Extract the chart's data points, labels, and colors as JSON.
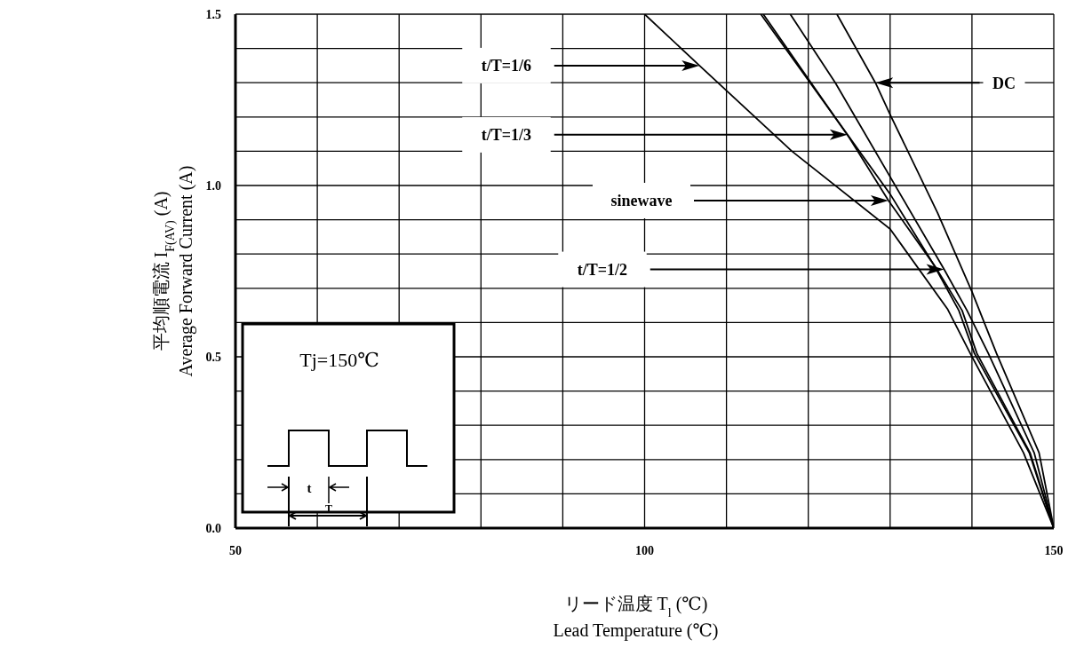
{
  "chart_data": {
    "type": "line",
    "xlabel": "リード温度 T$_{l}$ (℃)\nLead Temperature (℃)",
    "ylabel": "平均順電流 I$_{F(AV)}$ (A)\nAverage Forward Current (A)",
    "xlim": [
      50,
      150
    ],
    "ylim": [
      0,
      1.5
    ],
    "xticks": [
      50,
      {
        "value": 60,
        "label": null
      },
      {
        "value": 70,
        "label": null
      },
      {
        "value": 80,
        "label": null
      },
      {
        "value": 90,
        "label": null
      },
      100,
      {
        "value": 110,
        "label": null
      },
      {
        "value": 120,
        "label": null
      },
      {
        "value": 130,
        "label": null
      },
      {
        "value": 140,
        "label": null
      },
      150
    ],
    "yticks": [
      {
        "value": 0,
        "label": "0.0"
      },
      {
        "value": 0.1,
        "label": null
      },
      {
        "value": 0.2,
        "label": null
      },
      {
        "value": 0.3,
        "label": null
      },
      {
        "value": 0.4,
        "label": null
      },
      0.5,
      {
        "value": 0.6,
        "label": null
      },
      {
        "value": 0.7,
        "label": null
      },
      {
        "value": 0.8,
        "label": null
      },
      {
        "value": 0.9,
        "label": null
      },
      {
        "value": 1,
        "label": "1.0"
      },
      {
        "value": 1.1,
        "label": null
      },
      {
        "value": 1.2,
        "label": null
      },
      {
        "value": 1.3,
        "label": null
      },
      {
        "value": 1.4,
        "label": null
      },
      1.5
    ],
    "grid": true,
    "legend": false,
    "marker": "none",
    "line_style": "solid",
    "series": [
      {
        "color": "#000000",
        "x": [
          100,
          106.7,
          118,
          130,
          137,
          139.9,
          146.3,
          150
        ],
        "values": [
          1.5,
          1.35,
          1.1,
          0.873,
          0.64,
          0.505,
          0.22,
          0
        ]
      },
      {
        "color": "#000000",
        "x": [
          114.2,
          124.8,
          130,
          135.3,
          138.4,
          140.3,
          147,
          150
        ],
        "values": [
          1.5,
          1.148,
          0.975,
          0.77,
          0.635,
          0.51,
          0.22,
          0
        ]
      },
      {
        "color": "#000000",
        "x": [
          114.5,
          125,
          129.8,
          135.6,
          138.8,
          140.6,
          147.1,
          150
        ],
        "values": [
          1.5,
          1.14,
          0.956,
          0.76,
          0.635,
          0.51,
          0.22,
          0
        ]
      },
      {
        "color": "#000000",
        "x": [
          117.8,
          123.3,
          136.6,
          139.4,
          142,
          147.6,
          150
        ],
        "values": [
          1.5,
          1.3,
          0.755,
          0.635,
          0.51,
          0.22,
          0
        ]
      },
      {
        "color": "#000000",
        "x": [
          123.5,
          128.2,
          130,
          135.8,
          140,
          143,
          148.2,
          150
        ],
        "values": [
          1.5,
          1.3,
          1.207,
          0.92,
          0.69,
          0.51,
          0.22,
          0
        ]
      }
    ],
    "annotations": [
      "t/T=1/6",
      "t/T=1/3",
      "sinewave",
      "t/T=1/2",
      "DC",
      "Tj=150℃",
      "t",
      "T"
    ]
  }
}
